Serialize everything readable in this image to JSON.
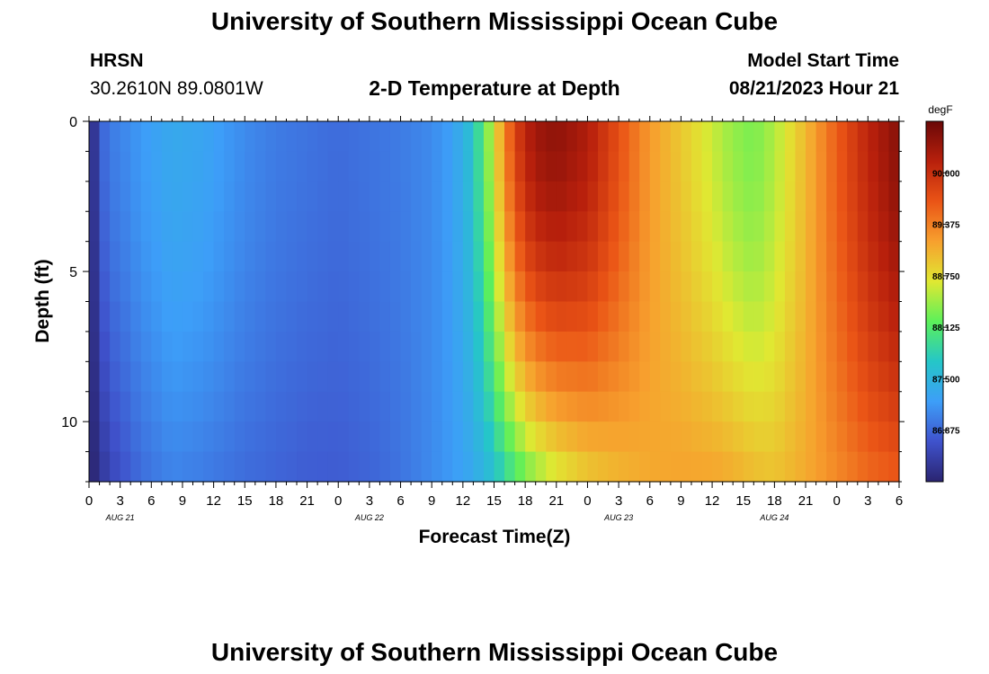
{
  "page": {
    "title": "University of Southern Mississippi Ocean Cube",
    "title_repeat": "University of Southern Mississippi Ocean Cube",
    "station": "HRSN",
    "coordinates": "30.2610N  89.0801W",
    "plot_heading": "2-D Temperature at Depth",
    "model_start_label": "Model Start Time",
    "model_start_value": "08/21/2023 Hour 21"
  },
  "chart_data": {
    "type": "heatmap",
    "title": "2-D Temperature at Depth",
    "xlabel": "Forecast Time(Z)",
    "ylabel": "Depth (ft)",
    "x_tick_labels": [
      "0",
      "3",
      "6",
      "9",
      "12",
      "15",
      "18",
      "21",
      "0",
      "3",
      "6",
      "9",
      "12",
      "15",
      "18",
      "21",
      "0",
      "3",
      "6",
      "9",
      "12",
      "15",
      "18",
      "21",
      "0",
      "3",
      "6"
    ],
    "date_labels": [
      {
        "text": "AUG 21",
        "hour_index": 3
      },
      {
        "text": "AUG 22",
        "hour_index": 27
      },
      {
        "text": "AUG 23",
        "hour_index": 51
      },
      {
        "text": "AUG 24",
        "hour_index": 66
      }
    ],
    "x_range_hours": [
      0,
      78
    ],
    "y_ticks": [
      0,
      5,
      10
    ],
    "y_tick_labels": [
      "0",
      "5",
      "10"
    ],
    "y_range_ft": [
      0,
      12
    ],
    "colorbar": {
      "unit": "degF",
      "ticks": [
        86.875,
        87.5,
        88.125,
        88.75,
        89.375,
        90.0
      ],
      "tick_labels": [
        "86.875",
        "87.500",
        "88.125",
        "88.750",
        "89.375",
        "90.000"
      ],
      "range": [
        86.25,
        90.625
      ]
    },
    "colors": {
      "stops": [
        "#2a2470",
        "#3f52cc",
        "#3d9ef8",
        "#25c6c8",
        "#5cf05a",
        "#e0e832",
        "#f7a02e",
        "#ea5416",
        "#b8200c",
        "#6a0808"
      ]
    },
    "series_profile": {
      "note_hidden": "",
      "time_hours": [
        0,
        0.5,
        1,
        1.5,
        2,
        3,
        5,
        8,
        11,
        13,
        15,
        18,
        21,
        24,
        27,
        30,
        33,
        35,
        36.5,
        38,
        39,
        40,
        41,
        42,
        43,
        45,
        48,
        51,
        54,
        57,
        60,
        62,
        64,
        66,
        69,
        72,
        75,
        78
      ],
      "surface_degF": [
        86.25,
        86.45,
        86.7,
        86.9,
        87.0,
        87.05,
        87.2,
        87.35,
        87.3,
        87.2,
        87.1,
        87.0,
        86.95,
        86.9,
        86.95,
        87.0,
        87.1,
        87.25,
        87.55,
        88.1,
        88.7,
        89.3,
        89.8,
        90.1,
        90.3,
        90.4,
        90.2,
        89.7,
        89.2,
        88.9,
        88.6,
        88.4,
        88.3,
        88.5,
        89.0,
        89.6,
        90.1,
        90.45
      ],
      "bottom_degF": [
        86.25,
        86.3,
        86.4,
        86.5,
        86.6,
        86.7,
        86.9,
        87.05,
        87.0,
        86.95,
        86.9,
        86.85,
        86.8,
        86.8,
        86.85,
        86.95,
        87.1,
        87.2,
        87.3,
        87.45,
        87.6,
        87.8,
        88.0,
        88.2,
        88.35,
        88.6,
        88.85,
        89.0,
        89.1,
        89.15,
        89.15,
        89.1,
        89.0,
        88.95,
        89.1,
        89.3,
        89.5,
        89.6
      ]
    }
  }
}
